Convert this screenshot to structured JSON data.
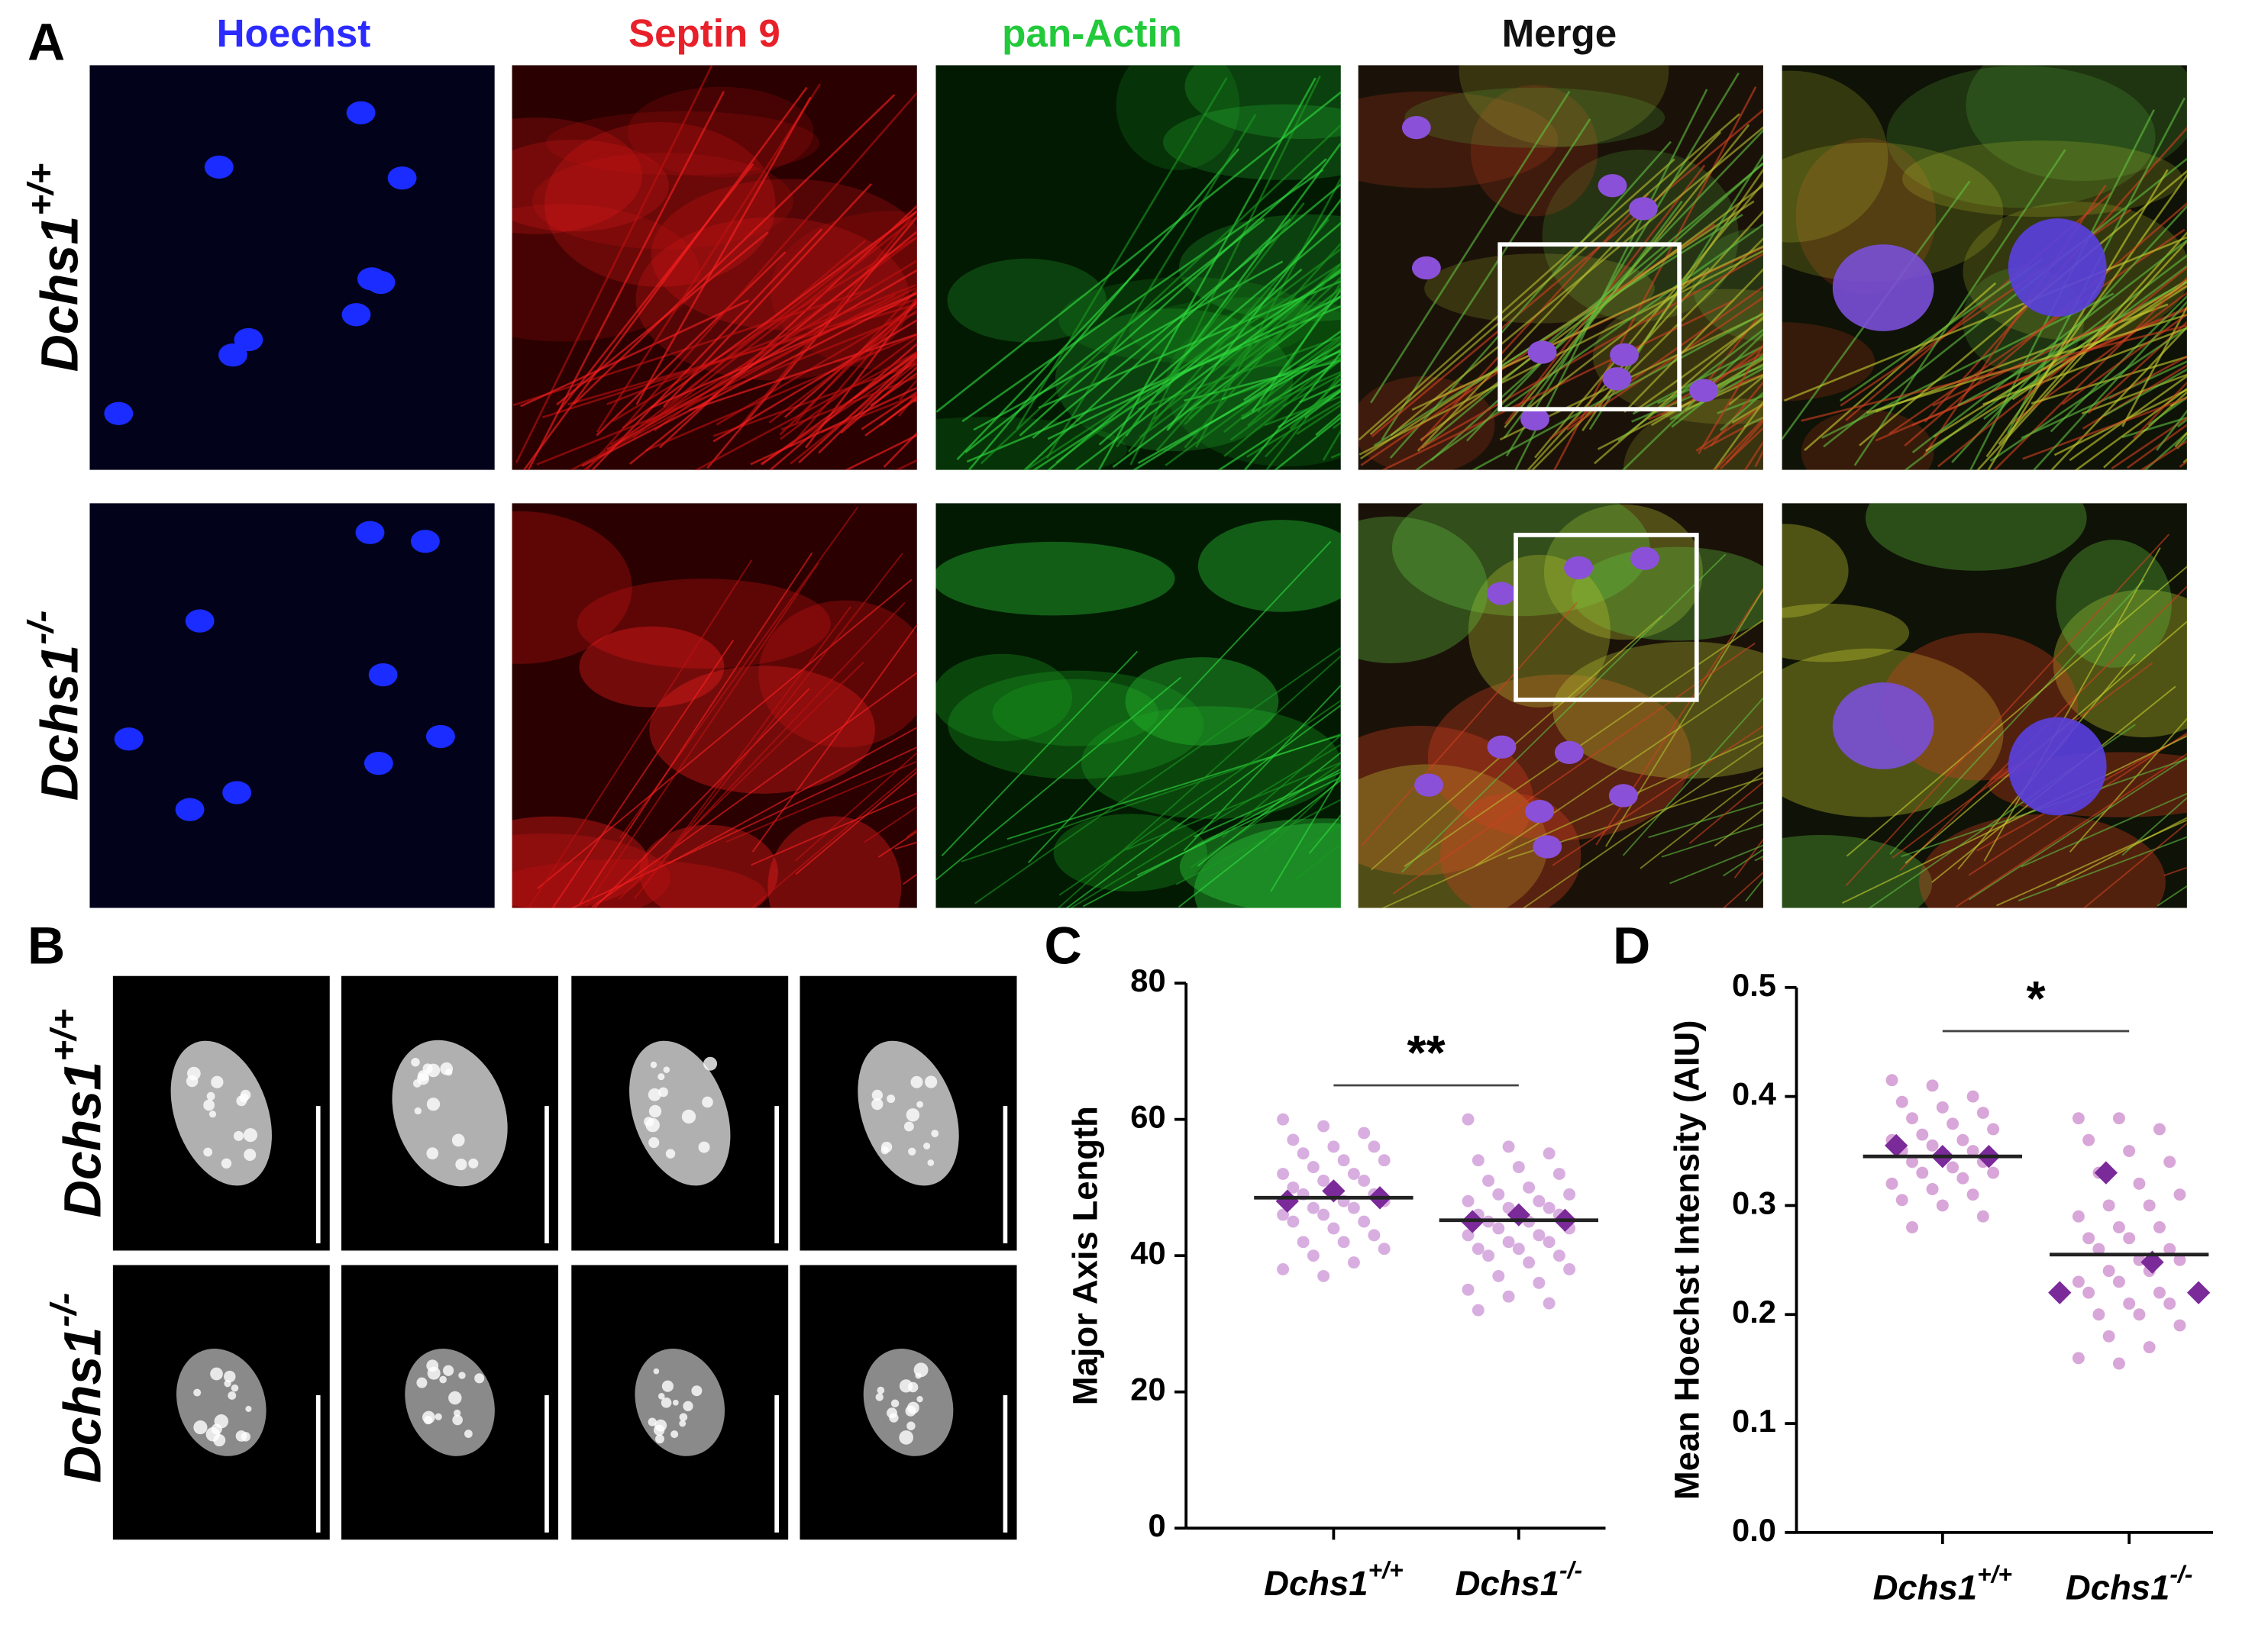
{
  "panel_labels": [
    "A",
    "B",
    "C",
    "D"
  ],
  "panel_a": {
    "columns": [
      {
        "label": "Hoechst",
        "color": "#2b2bff"
      },
      {
        "label": "Septin 9",
        "color": "#e8202a"
      },
      {
        "label": "pan-Actin",
        "color": "#22c93a"
      },
      {
        "label": "Merge",
        "color": "#111111"
      }
    ],
    "rows": [
      "Dchs1+/+",
      "Dchs1-/-"
    ]
  },
  "panel_b": {
    "rows": [
      "Dchs1+/+",
      "Dchs1-/-"
    ]
  },
  "chart_data": [
    {
      "type": "dot",
      "ylabel": "Major Axis Length",
      "ylim": [
        0,
        80
      ],
      "yticks": [
        0,
        20,
        40,
        60,
        80
      ],
      "categories": [
        "Dchs1+/+",
        "Dchs1-/-"
      ],
      "point_color": "#d8aee0",
      "replicate_color": "#7b2a9a",
      "mean_color": "#222222",
      "points": [
        [
          60,
          59,
          58,
          57,
          56,
          56,
          55,
          54,
          54,
          53,
          52,
          52,
          51,
          51,
          50,
          50,
          49,
          49,
          48,
          48,
          47,
          47,
          46,
          46,
          45,
          45,
          44,
          43,
          42,
          42,
          41,
          40,
          39,
          38,
          37
        ],
        [
          60,
          56,
          55,
          54,
          53,
          52,
          51,
          50,
          49,
          49,
          48,
          48,
          47,
          47,
          46,
          46,
          46,
          45,
          45,
          44,
          44,
          43,
          43,
          42,
          42,
          41,
          41,
          40,
          40,
          39,
          38,
          37,
          36,
          35,
          34,
          33,
          32
        ]
      ],
      "replicate_means": [
        [
          48,
          49.5,
          48.5
        ],
        [
          45,
          46,
          45.2
        ]
      ],
      "means": [
        48.5,
        45.2
      ],
      "significance": "**",
      "significance_y": 65
    },
    {
      "type": "dot",
      "ylabel": "Mean Hoechst Intensity (AIU)",
      "ylim": [
        0,
        0.5
      ],
      "yticks": [
        {
          "value": 0,
          "label": "0.0"
        },
        0.1,
        0.2,
        0.3,
        0.4,
        0.5
      ],
      "categories": [
        "Dchs1+/+",
        "Dchs1-/-"
      ],
      "point_color": "#d8a6d8",
      "replicate_color": "#7b2a9a",
      "mean_color": "#222222",
      "points": [
        [
          0.415,
          0.41,
          0.4,
          0.395,
          0.39,
          0.385,
          0.38,
          0.375,
          0.37,
          0.365,
          0.36,
          0.36,
          0.355,
          0.35,
          0.35,
          0.345,
          0.34,
          0.34,
          0.335,
          0.33,
          0.33,
          0.325,
          0.32,
          0.315,
          0.31,
          0.305,
          0.3,
          0.29,
          0.28
        ],
        [
          0.38,
          0.38,
          0.37,
          0.36,
          0.35,
          0.34,
          0.33,
          0.32,
          0.31,
          0.3,
          0.3,
          0.29,
          0.28,
          0.28,
          0.27,
          0.27,
          0.26,
          0.26,
          0.25,
          0.25,
          0.24,
          0.24,
          0.23,
          0.23,
          0.22,
          0.22,
          0.21,
          0.21,
          0.2,
          0.2,
          0.19,
          0.18,
          0.17,
          0.16,
          0.155
        ]
      ],
      "replicate_means": [
        [
          0.355,
          0.345,
          0.345
        ],
        [
          0.22,
          0.33,
          0.248,
          0.22
        ]
      ],
      "means": [
        0.345,
        0.255
      ],
      "significance": "*",
      "significance_y": 0.46
    }
  ]
}
